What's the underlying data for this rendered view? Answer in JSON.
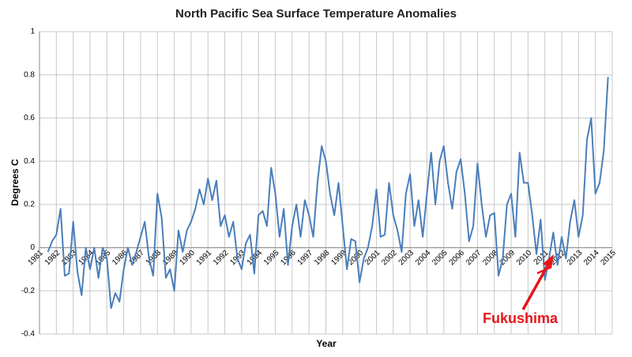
{
  "chart_data": {
    "type": "line",
    "title": "North Pacific Sea Surface Temperature Anomalies",
    "x_label": "Year",
    "y_label": "Degrees C",
    "annotation": "Fukushima",
    "annotation_color": "#e8141b",
    "grid": true,
    "xlim": [
      1981,
      2015
    ],
    "xticks": [
      1981,
      1982,
      1983,
      1984,
      1985,
      1986,
      1987,
      1988,
      1989,
      1990,
      1991,
      1992,
      1993,
      1994,
      1995,
      1996,
      1997,
      1998,
      1999,
      2000,
      2001,
      2002,
      2003,
      2004,
      2005,
      2006,
      2007,
      2008,
      2009,
      2010,
      2011,
      2012,
      2013,
      2014,
      2015
    ],
    "ylim": [
      -0.4,
      1
    ],
    "yticks": [
      -0.4,
      -0.2,
      0,
      0.2,
      0.4,
      0.6,
      0.8,
      1
    ],
    "x": [
      1981.5,
      1981.75,
      1982,
      1982.25,
      1982.5,
      1982.75,
      1983,
      1983.25,
      1983.5,
      1983.75,
      1984,
      1984.25,
      1984.5,
      1984.75,
      1985,
      1985.25,
      1985.5,
      1985.75,
      1986,
      1986.25,
      1986.5,
      1986.75,
      1987,
      1987.25,
      1987.5,
      1987.75,
      1988,
      1988.25,
      1988.5,
      1988.75,
      1989,
      1989.25,
      1989.5,
      1989.75,
      1990,
      1990.25,
      1990.5,
      1990.75,
      1991,
      1991.25,
      1991.5,
      1991.75,
      1992,
      1992.25,
      1992.5,
      1992.75,
      1993,
      1993.25,
      1993.5,
      1993.75,
      1994,
      1994.25,
      1994.5,
      1994.75,
      1995,
      1995.25,
      1995.5,
      1995.75,
      1996,
      1996.25,
      1996.5,
      1996.75,
      1997,
      1997.25,
      1997.5,
      1997.75,
      1998,
      1998.25,
      1998.5,
      1998.75,
      1999,
      1999.25,
      1999.5,
      1999.75,
      2000,
      2000.25,
      2000.5,
      2000.75,
      2001,
      2001.25,
      2001.5,
      2001.75,
      2002,
      2002.25,
      2002.5,
      2002.75,
      2003,
      2003.25,
      2003.5,
      2003.75,
      2004,
      2004.25,
      2004.5,
      2004.75,
      2005,
      2005.25,
      2005.5,
      2005.75,
      2006,
      2006.25,
      2006.5,
      2006.75,
      2007,
      2007.25,
      2007.5,
      2007.75,
      2008,
      2008.25,
      2008.5,
      2008.75,
      2009,
      2009.25,
      2009.5,
      2009.75,
      2010,
      2010.25,
      2010.5,
      2010.75,
      2011,
      2011.25,
      2011.5,
      2011.75,
      2012,
      2012.25,
      2012.5,
      2012.75,
      2013,
      2013.25,
      2013.5,
      2013.75,
      2014,
      2014.25,
      2014.5,
      2014.75
    ],
    "series": [
      {
        "color": "#4a7ebb",
        "values": [
          -0.02,
          0.03,
          0.06,
          0.18,
          -0.13,
          -0.12,
          0.12,
          -0.11,
          -0.22,
          0.0,
          -0.1,
          0.0,
          -0.14,
          0.0,
          -0.05,
          -0.28,
          -0.21,
          -0.25,
          -0.1,
          0.0,
          -0.08,
          -0.02,
          0.05,
          0.12,
          -0.05,
          -0.13,
          0.25,
          0.14,
          -0.14,
          -0.1,
          -0.2,
          0.08,
          -0.02,
          0.08,
          0.12,
          0.18,
          0.27,
          0.2,
          0.32,
          0.22,
          0.31,
          0.1,
          0.15,
          0.05,
          0.12,
          -0.05,
          -0.1,
          0.02,
          0.06,
          -0.12,
          0.15,
          0.17,
          0.1,
          0.37,
          0.25,
          0.05,
          0.18,
          -0.08,
          0.1,
          0.2,
          0.05,
          0.22,
          0.15,
          0.05,
          0.3,
          0.47,
          0.4,
          0.25,
          0.15,
          0.3,
          0.1,
          -0.1,
          0.04,
          0.03,
          -0.16,
          -0.05,
          0.0,
          0.1,
          0.27,
          0.05,
          0.06,
          0.3,
          0.15,
          0.08,
          -0.02,
          0.25,
          0.34,
          0.1,
          0.22,
          0.05,
          0.25,
          0.44,
          0.2,
          0.4,
          0.47,
          0.3,
          0.18,
          0.35,
          0.41,
          0.25,
          0.03,
          0.1,
          0.39,
          0.2,
          0.05,
          0.15,
          0.16,
          -0.13,
          -0.05,
          0.2,
          0.25,
          0.05,
          0.44,
          0.3,
          0.3,
          0.15,
          -0.03,
          0.13,
          -0.15,
          -0.05,
          0.07,
          -0.08,
          0.05,
          -0.05,
          0.12,
          0.22,
          0.05,
          0.15,
          0.5,
          0.6,
          0.25,
          0.3,
          0.45,
          0.79
        ]
      }
    ]
  }
}
